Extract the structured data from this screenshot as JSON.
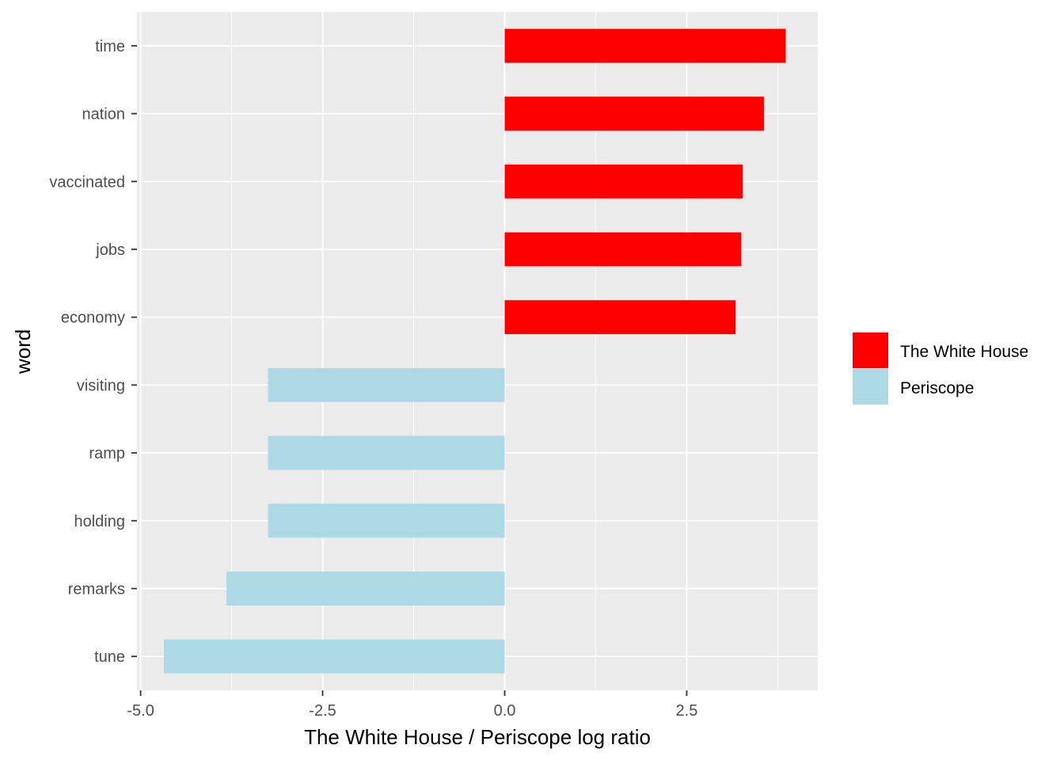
{
  "chart_data": {
    "type": "bar",
    "orientation": "horizontal",
    "xlabel": "The White House / Periscope log ratio",
    "ylabel": "word",
    "xlim": [
      -5.05,
      4.3
    ],
    "x_ticks": [
      -5.0,
      -2.5,
      0.0,
      2.5
    ],
    "x_tick_labels": [
      "-5.0",
      "-2.5",
      "0.0",
      "2.5"
    ],
    "grid": true,
    "legend_position": "right",
    "categories": [
      "time",
      "nation",
      "vaccinated",
      "jobs",
      "economy",
      "visiting",
      "ramp",
      "holding",
      "remarks",
      "tune"
    ],
    "values": [
      3.86,
      3.56,
      3.27,
      3.25,
      3.17,
      -3.25,
      -3.25,
      -3.25,
      -3.82,
      -4.68
    ],
    "groups": [
      "The White House",
      "The White House",
      "The White House",
      "The White House",
      "The White House",
      "Periscope",
      "Periscope",
      "Periscope",
      "Periscope",
      "Periscope"
    ],
    "series": [
      {
        "name": "The White House",
        "color": "#ff0000"
      },
      {
        "name": "Periscope",
        "color": "#add8e6"
      }
    ],
    "panel_background": "#ebebeb",
    "grid_color": "#ffffff"
  }
}
